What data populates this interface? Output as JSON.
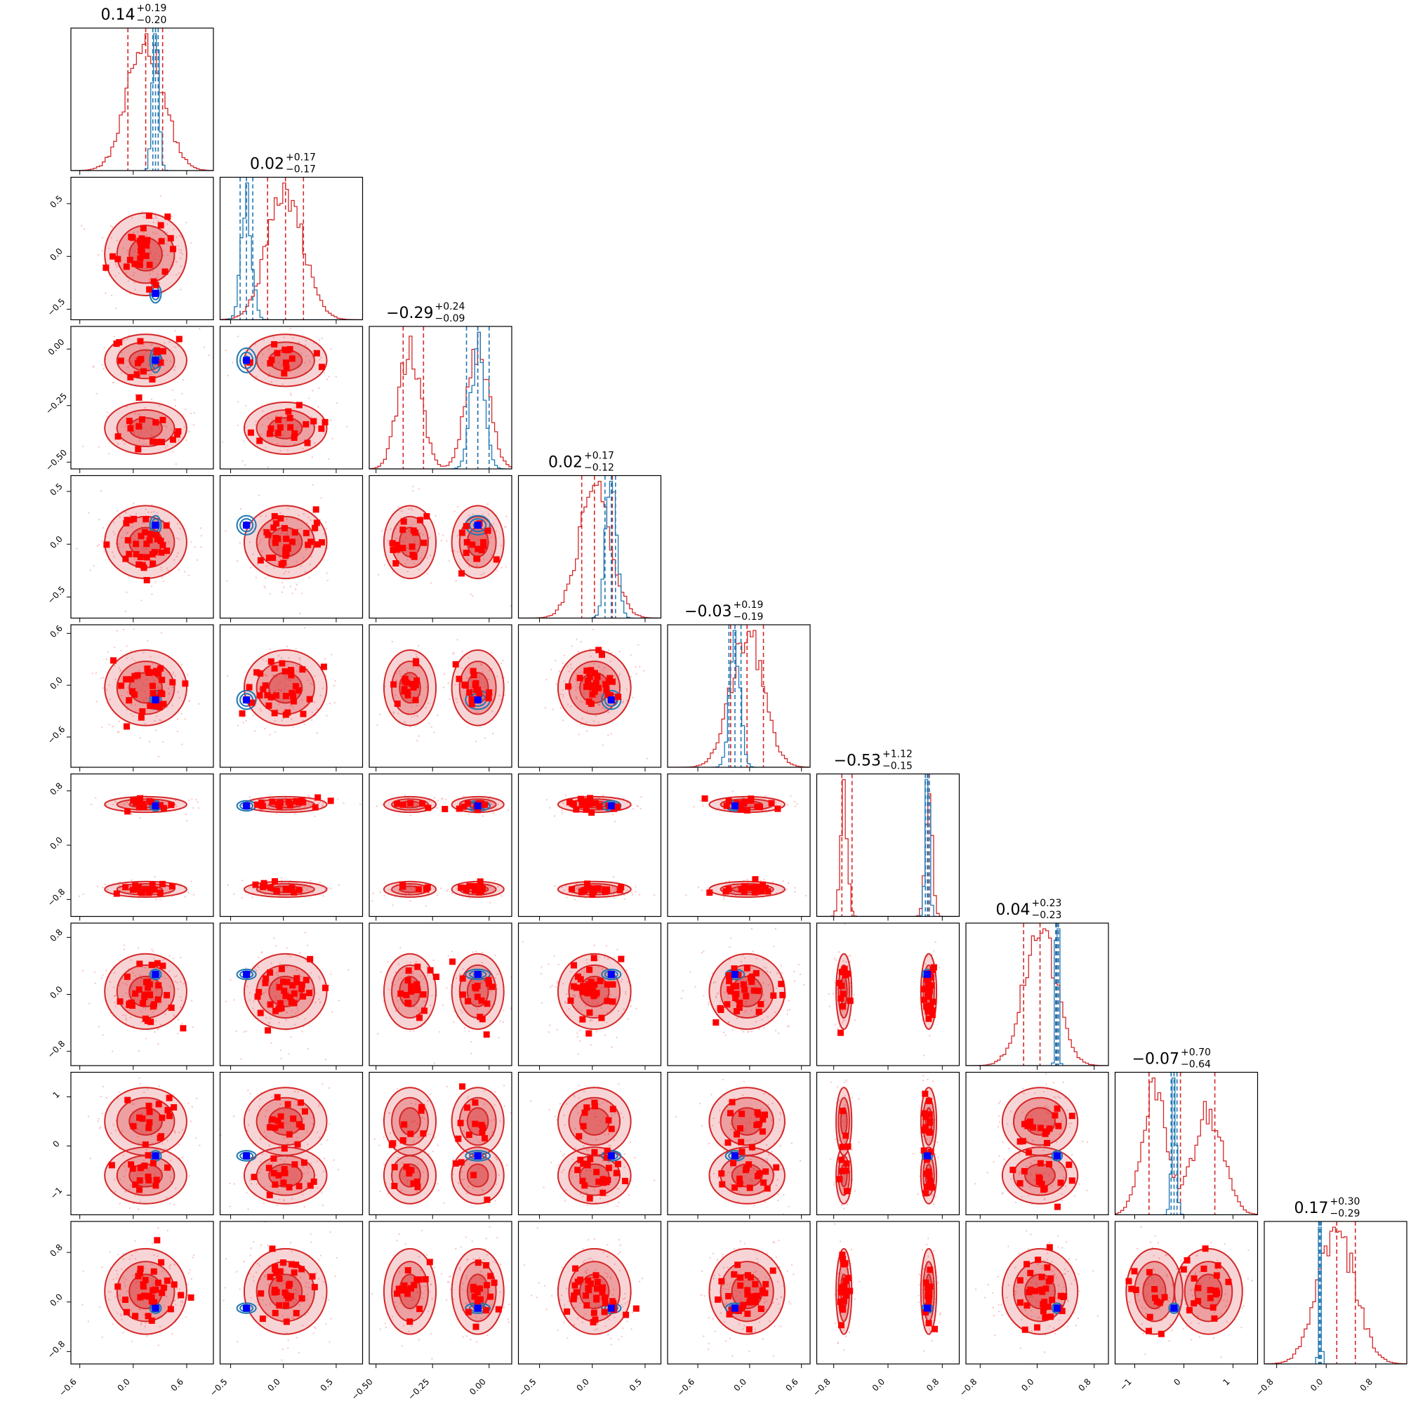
{
  "chart_data": {
    "type": "scatter",
    "plot_kind": "corner plot (posterior samples, 9 parameters)",
    "title": "",
    "grid": false,
    "legend": "none",
    "colors": {
      "broad_posterior": "#d62728",
      "narrow_posterior": "#1f77b4",
      "scatter_points": "#ff0000",
      "truth_marker": "#0000ff"
    },
    "params": [
      {
        "index": 0,
        "title": "0.14",
        "plus": "+0.19",
        "minus": "−0.20",
        "range": [
          -0.7,
          0.9
        ],
        "ticks": [
          -0.6,
          0.0,
          0.6
        ],
        "tick_labels": [
          "−0.6",
          "0.0",
          "0.6"
        ],
        "broad": {
          "modes": [
            {
              "mu": 0.14,
              "sigma": 0.2,
              "w": 1
            }
          ],
          "q": [
            -0.06,
            0.14,
            0.33
          ]
        },
        "narrow": {
          "modes": [
            {
              "mu": 0.25,
              "sigma": 0.035,
              "w": 1
            }
          ],
          "q": [
            0.22,
            0.25,
            0.28
          ]
        }
      },
      {
        "index": 1,
        "title": "0.02",
        "plus": "+0.17",
        "minus": "−0.17",
        "range": [
          -0.6,
          0.75
        ],
        "ticks": [
          -0.5,
          0.0,
          0.5
        ],
        "tick_labels": [
          "−0.5",
          "0.0",
          "0.5"
        ],
        "broad": {
          "modes": [
            {
              "mu": 0.02,
              "sigma": 0.17,
              "w": 1
            }
          ],
          "q": [
            -0.15,
            0.02,
            0.19
          ]
        },
        "narrow": {
          "modes": [
            {
              "mu": -0.35,
              "sigma": 0.05,
              "w": 1
            }
          ],
          "q": [
            -0.41,
            -0.35,
            -0.29
          ]
        }
      },
      {
        "index": 2,
        "title": "−0.29",
        "plus": "+0.24",
        "minus": "−0.09",
        "range": [
          -0.53,
          0.1
        ],
        "ticks": [
          -0.5,
          -0.25,
          0.0
        ],
        "tick_labels": [
          "−0.50",
          "−0.25",
          "0.00"
        ],
        "broad": {
          "modes": [
            {
              "mu": -0.35,
              "sigma": 0.05,
              "w": 1
            },
            {
              "mu": -0.05,
              "sigma": 0.05,
              "w": 1
            }
          ],
          "q": [
            -0.38,
            -0.29,
            -0.05
          ]
        },
        "narrow": {
          "modes": [
            {
              "mu": -0.05,
              "sigma": 0.03,
              "w": 1
            }
          ],
          "q": [
            -0.1,
            -0.05,
            0.0
          ]
        }
      },
      {
        "index": 3,
        "title": "0.02",
        "plus": "+0.17",
        "minus": "−0.12",
        "range": [
          -0.7,
          0.65
        ],
        "ticks": [
          -0.5,
          0.0,
          0.5
        ],
        "tick_labels": [
          "−0.5",
          "0.0",
          "0.5"
        ],
        "broad": {
          "modes": [
            {
              "mu": 0.02,
              "sigma": 0.15,
              "w": 1
            }
          ],
          "q": [
            -0.1,
            0.02,
            0.19
          ]
        },
        "narrow": {
          "modes": [
            {
              "mu": 0.18,
              "sigma": 0.05,
              "w": 1
            }
          ],
          "q": [
            0.12,
            0.18,
            0.22
          ]
        }
      },
      {
        "index": 4,
        "title": "−0.03",
        "plus": "+0.19",
        "minus": "−0.19",
        "range": [
          -0.95,
          0.7
        ],
        "ticks": [
          -0.6,
          0.0,
          0.6
        ],
        "tick_labels": [
          "−0.6",
          "0.0",
          "0.6"
        ],
        "broad": {
          "modes": [
            {
              "mu": -0.03,
              "sigma": 0.19,
              "w": 1
            }
          ],
          "q": [
            -0.22,
            -0.03,
            0.16
          ]
        },
        "narrow": {
          "modes": [
            {
              "mu": -0.17,
              "sigma": 0.06,
              "w": 1
            }
          ],
          "q": [
            -0.24,
            -0.17,
            -0.1
          ]
        }
      },
      {
        "index": 5,
        "title": "−0.53",
        "plus": "+1.12",
        "minus": "−0.15",
        "range": [
          -1.05,
          1.05
        ],
        "ticks": [
          -0.8,
          0.0,
          0.8
        ],
        "tick_labels": [
          "−0.8",
          "0.0",
          "0.8"
        ],
        "broad": {
          "modes": [
            {
              "mu": -0.65,
              "sigma": 0.05,
              "w": 1
            },
            {
              "mu": 0.6,
              "sigma": 0.05,
              "w": 1
            }
          ],
          "q": [
            -0.68,
            -0.53,
            0.59
          ]
        },
        "narrow": {
          "modes": [
            {
              "mu": 0.58,
              "sigma": 0.03,
              "w": 1
            }
          ],
          "q": [
            0.55,
            0.58,
            0.61
          ]
        }
      },
      {
        "index": 6,
        "title": "0.04",
        "plus": "+0.23",
        "minus": "−0.23",
        "range": [
          -1.0,
          1.0
        ],
        "ticks": [
          -0.8,
          0.0,
          0.8
        ],
        "tick_labels": [
          "−0.8",
          "0.0",
          "0.8"
        ],
        "broad": {
          "modes": [
            {
              "mu": 0.04,
              "sigma": 0.23,
              "w": 1
            }
          ],
          "q": [
            -0.19,
            0.04,
            0.27
          ]
        },
        "narrow": {
          "modes": [
            {
              "mu": 0.28,
              "sigma": 0.02,
              "w": 1
            }
          ],
          "q": [
            0.26,
            0.28,
            0.3
          ]
        }
      },
      {
        "index": 7,
        "title": "−0.07",
        "plus": "+0.70",
        "minus": "−0.64",
        "range": [
          -1.4,
          1.5
        ],
        "ticks": [
          -1,
          0,
          1
        ],
        "tick_labels": [
          "−1",
          "0",
          "1"
        ],
        "broad": {
          "modes": [
            {
              "mu": -0.6,
              "sigma": 0.25,
              "w": 1
            },
            {
              "mu": 0.5,
              "sigma": 0.3,
              "w": 1
            }
          ],
          "q": [
            -0.71,
            -0.07,
            0.63
          ]
        },
        "narrow": {
          "modes": [
            {
              "mu": -0.2,
              "sigma": 0.05,
              "w": 1
            }
          ],
          "q": [
            -0.26,
            -0.2,
            -0.14
          ]
        }
      },
      {
        "index": 8,
        "title": "0.17",
        "plus": "+0.30",
        "minus": "−0.29",
        "range": [
          -1.0,
          1.3
        ],
        "ticks": [
          -0.8,
          0.0,
          0.8
        ],
        "tick_labels": [
          "−0.8",
          "0.0",
          "0.8"
        ],
        "broad": {
          "modes": [
            {
              "mu": 0.17,
              "sigma": 0.3,
              "w": 1
            }
          ],
          "q": [
            -0.12,
            0.17,
            0.47
          ]
        },
        "narrow": {
          "modes": [
            {
              "mu": -0.1,
              "sigma": 0.02,
              "w": 1
            }
          ],
          "q": [
            -0.12,
            -0.1,
            -0.08
          ]
        }
      }
    ],
    "truth": [
      0.25,
      -0.35,
      -0.05,
      0.18,
      -0.17,
      0.58,
      0.28,
      -0.2,
      -0.1
    ]
  }
}
